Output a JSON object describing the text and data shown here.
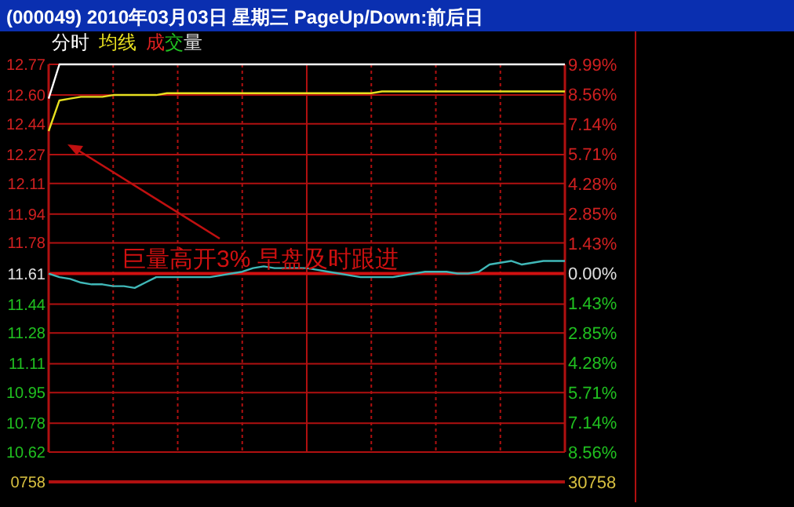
{
  "chart_data": {
    "type": "line",
    "title": "(000049) 2010年03月03日 星期三 PageUp/Down:前后日",
    "categories": [
      null,
      null,
      null,
      null,
      null,
      null,
      null,
      null,
      null,
      null,
      null,
      null,
      null,
      null,
      null,
      null,
      null,
      null,
      null,
      null,
      null,
      null,
      null,
      null,
      null,
      null,
      null,
      null,
      null,
      null,
      null,
      null,
      null,
      null,
      null,
      null,
      null,
      null,
      null,
      null,
      null,
      null,
      null,
      null,
      null,
      null,
      null,
      null,
      null
    ],
    "ylim": [
      10.62,
      12.77
    ],
    "yticks": [
      {
        "value": 10.62,
        "label": "10.62"
      },
      {
        "value": 10.78,
        "label": "10.78"
      },
      {
        "value": 10.95,
        "label": "10.95"
      },
      {
        "value": 11.11,
        "label": "11.11"
      },
      {
        "value": 11.28,
        "label": "11.28"
      },
      {
        "value": 11.44,
        "label": "11.44"
      },
      {
        "value": 11.61,
        "label": "11.61"
      },
      {
        "value": 11.78,
        "label": "11.78"
      },
      {
        "value": 11.94,
        "label": "11.94"
      },
      {
        "value": 12.11,
        "label": "12.11"
      },
      {
        "value": 12.27,
        "label": "12.27"
      },
      {
        "value": 12.44,
        "label": "12.44"
      },
      {
        "value": 12.6,
        "label": "12.60"
      },
      {
        "value": 12.77,
        "label": "12.77"
      }
    ],
    "y2lim": [
      -8.56,
      9.99
    ],
    "y2ticks": [
      {
        "value": -8.56,
        "label": "8.56%"
      },
      {
        "value": -7.14,
        "label": "7.14%"
      },
      {
        "value": -5.71,
        "label": "5.71%"
      },
      {
        "value": -4.28,
        "label": "4.28%"
      },
      {
        "value": -2.85,
        "label": "2.85%"
      },
      {
        "value": -1.43,
        "label": "1.43%"
      },
      {
        "value": 0,
        "label": "0.00%"
      },
      {
        "value": 1.43,
        "label": "1.43%"
      },
      {
        "value": 2.85,
        "label": "2.85%"
      },
      {
        "value": 4.28,
        "label": "4.28%"
      },
      {
        "value": 5.71,
        "label": "5.71%"
      },
      {
        "value": 7.14,
        "label": "7.14%"
      },
      {
        "value": 8.56,
        "label": "8.56%"
      },
      {
        "value": 9.99,
        "label": "9.99%"
      }
    ],
    "tick_labels": "y",
    "grid": true,
    "ref_lines": [
      {
        "axis": "y",
        "value": 11.61,
        "color": "#d01010"
      }
    ],
    "series": [
      {
        "name": "分时",
        "color": "#ffffff",
        "values": [
          12.58,
          12.77,
          12.77,
          12.77,
          12.77,
          12.77,
          12.77,
          12.77,
          12.77,
          12.77,
          12.77,
          12.77,
          12.77,
          12.77,
          12.77,
          12.77,
          12.77,
          12.77,
          12.77,
          12.77,
          12.77,
          12.77,
          12.77,
          12.77,
          12.77,
          12.77,
          12.77,
          12.77,
          12.77,
          12.77,
          12.77,
          12.77,
          12.77,
          12.77,
          12.77,
          12.77,
          12.77,
          12.77,
          12.77,
          12.77,
          12.77,
          12.77,
          12.77,
          12.77,
          12.77,
          12.77,
          12.77,
          12.77,
          12.77
        ]
      },
      {
        "name": "均线",
        "color": "#e8e020",
        "values": [
          12.4,
          12.57,
          12.58,
          12.59,
          12.59,
          12.59,
          12.6,
          12.6,
          12.6,
          12.6,
          12.6,
          12.61,
          12.61,
          12.61,
          12.61,
          12.61,
          12.61,
          12.61,
          12.61,
          12.61,
          12.61,
          12.61,
          12.61,
          12.61,
          12.61,
          12.61,
          12.61,
          12.61,
          12.61,
          12.61,
          12.61,
          12.62,
          12.62,
          12.62,
          12.62,
          12.62,
          12.62,
          12.62,
          12.62,
          12.62,
          12.62,
          12.62,
          12.62,
          12.62,
          12.62,
          12.62,
          12.62,
          12.62,
          12.62
        ]
      },
      {
        "color": "#40b8b8",
        "values": [
          11.61,
          11.59,
          11.58,
          11.56,
          11.55,
          11.55,
          11.54,
          11.54,
          11.53,
          11.56,
          11.59,
          11.59,
          11.59,
          11.59,
          11.59,
          11.59,
          11.6,
          11.61,
          11.62,
          11.64,
          11.65,
          11.64,
          11.64,
          11.64,
          11.64,
          11.63,
          11.62,
          11.61,
          11.6,
          11.59,
          11.59,
          11.59,
          11.59,
          11.6,
          11.61,
          11.62,
          11.62,
          11.62,
          11.61,
          11.61,
          11.62,
          11.66,
          11.67,
          11.68,
          11.66,
          11.67,
          11.68,
          11.68,
          11.68
        ]
      }
    ],
    "annotations": [
      "巨量高开3%  早盘及时跟进",
      "成交量",
      "0758",
      "30758"
    ]
  }
}
